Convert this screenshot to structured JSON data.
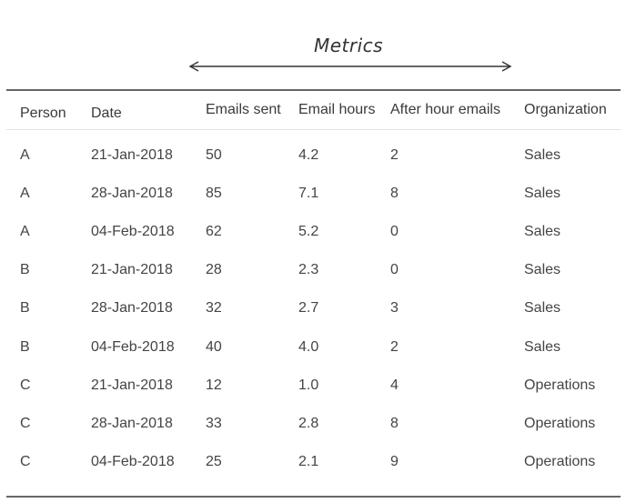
{
  "title": "Metrics",
  "columns": [
    "Person",
    "Date",
    "Emails sent",
    "Email hours",
    "After hour emails",
    "Organization"
  ],
  "rows": [
    [
      "A",
      "21-Jan-2018",
      "50",
      "4.2",
      "2",
      "Sales"
    ],
    [
      "A",
      "28-Jan-2018",
      "85",
      "7.1",
      "8",
      "Sales"
    ],
    [
      "A",
      "04-Feb-2018",
      "62",
      "5.2",
      "0",
      "Sales"
    ],
    [
      "B",
      "21-Jan-2018",
      "28",
      "2.3",
      "0",
      "Sales"
    ],
    [
      "B",
      "28-Jan-2018",
      "32",
      "2.7",
      "3",
      "Sales"
    ],
    [
      "B",
      "04-Feb-2018",
      "40",
      "4.0",
      "2",
      "Sales"
    ],
    [
      "C",
      "21-Jan-2018",
      "12",
      "1.0",
      "4",
      "Operations"
    ],
    [
      "C",
      "28-Jan-2018",
      "33",
      "2.8",
      "8",
      "Operations"
    ],
    [
      "C",
      "04-Feb-2018",
      "25",
      "2.1",
      "9",
      "Operations"
    ]
  ]
}
